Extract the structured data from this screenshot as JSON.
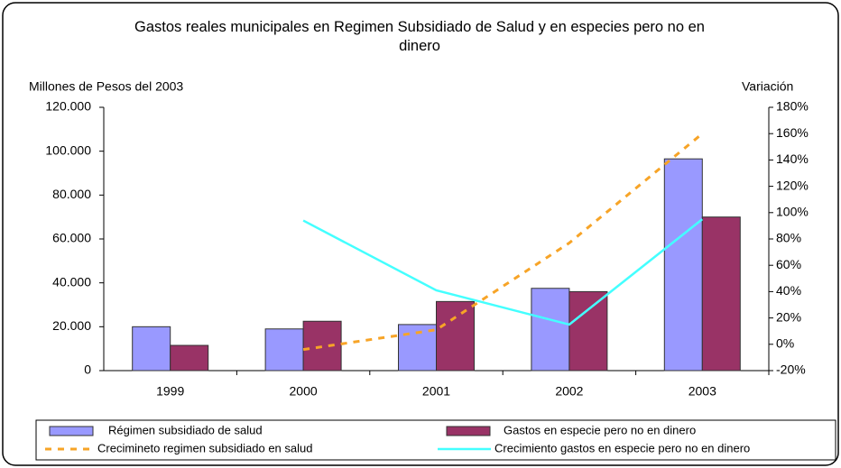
{
  "chart_data": {
    "type": "bar",
    "title": "Gastos reales municipales en Regimen Subsidiado de Salud y en especies pero no en dinero",
    "y_label": "Millones de Pesos del  2003",
    "y2_label": "Variación",
    "categories": [
      "1999",
      "2000",
      "2001",
      "2002",
      "2003"
    ],
    "series": [
      {
        "name": "Régimen subsidiado  de salud",
        "type": "bar",
        "color": "#9999ff",
        "values": [
          20000,
          19000,
          21000,
          37500,
          96500
        ]
      },
      {
        "name": "Gastos en especie pero no en dinero",
        "type": "bar",
        "color": "#993366",
        "values": [
          11500,
          22500,
          31500,
          36000,
          70000
        ]
      },
      {
        "name": "Crecimineto regimen subsidiado en salud",
        "type": "line",
        "axis": "y2",
        "dashed": true,
        "color": "#f7a427",
        "values": [
          null,
          -4,
          11,
          77,
          160
        ]
      },
      {
        "name": "Crecimiento gastos en especie pero no en dinero",
        "type": "line",
        "axis": "y2",
        "dashed": false,
        "color": "#44ffff",
        "values": [
          null,
          94,
          41,
          15,
          95
        ]
      }
    ],
    "ylim": [
      0,
      120000
    ],
    "yticks": [
      0,
      {
        "value": 20000,
        "label": "20.000"
      },
      {
        "value": 40000,
        "label": "40.000"
      },
      {
        "value": 60000,
        "label": "60.000"
      },
      {
        "value": 80000,
        "label": "80.000"
      },
      {
        "value": 100000,
        "label": "100.000"
      },
      {
        "value": 120000,
        "label": "120.000"
      }
    ],
    "y2lim": [
      -20,
      180
    ],
    "y2ticks": [
      {
        "value": -20,
        "label": "-20%"
      },
      {
        "value": 0,
        "label": "0%"
      },
      {
        "value": 20,
        "label": "20%"
      },
      {
        "value": 40,
        "label": "40%"
      },
      {
        "value": 60,
        "label": "60%"
      },
      {
        "value": 80,
        "label": "80%"
      },
      {
        "value": 100,
        "label": "100%"
      },
      {
        "value": 120,
        "label": "120%"
      },
      {
        "value": 140,
        "label": "140%"
      },
      {
        "value": 160,
        "label": "160%"
      },
      {
        "value": 180,
        "label": "180%"
      }
    ]
  }
}
